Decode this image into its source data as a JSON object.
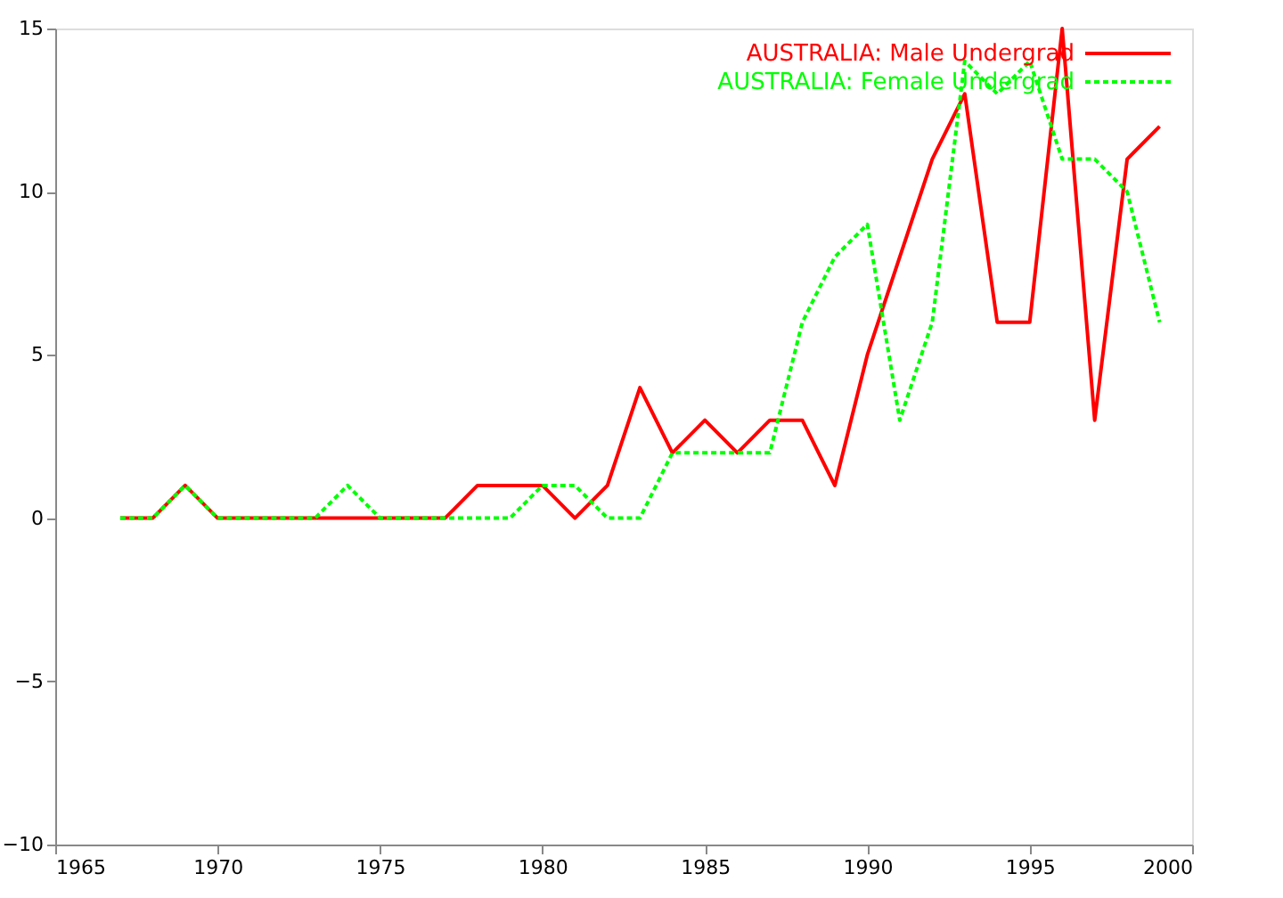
{
  "chart_data": {
    "type": "line",
    "x": [
      1967,
      1968,
      1969,
      1970,
      1971,
      1972,
      1973,
      1974,
      1975,
      1976,
      1977,
      1978,
      1979,
      1980,
      1981,
      1982,
      1983,
      1984,
      1985,
      1986,
      1987,
      1988,
      1989,
      1990,
      1991,
      1992,
      1993,
      1994,
      1995,
      1996,
      1997,
      1998,
      1999
    ],
    "series": [
      {
        "name": "AUSTRALIA: Male Undergrad",
        "color": "#ff0000",
        "line_style": "solid",
        "values": [
          0,
          0,
          1,
          0,
          0,
          0,
          0,
          0,
          0,
          0,
          0,
          1,
          1,
          1,
          0,
          1,
          4,
          2,
          3,
          2,
          3,
          3,
          1,
          5,
          8,
          11,
          13,
          6,
          6,
          15,
          3,
          11,
          12
        ]
      },
      {
        "name": "AUSTRALIA: Female Undergrad",
        "color": "#00ff00",
        "line_style": "dashed",
        "values": [
          0,
          0,
          1,
          0,
          0,
          0,
          0,
          1,
          0,
          0,
          0,
          0,
          0,
          1,
          1,
          0,
          0,
          2,
          2,
          2,
          2,
          6,
          8,
          9,
          3,
          6,
          14,
          13,
          14,
          11,
          11,
          10,
          6
        ]
      }
    ],
    "xlim": [
      1965,
      2000
    ],
    "xticks": [
      1965,
      1970,
      1975,
      1980,
      1985,
      1990,
      1995,
      2000
    ],
    "ylim": [
      -10,
      15
    ],
    "yticks": [
      -10,
      -5,
      0,
      5,
      10,
      15
    ],
    "grid": false,
    "legend": "top right"
  }
}
